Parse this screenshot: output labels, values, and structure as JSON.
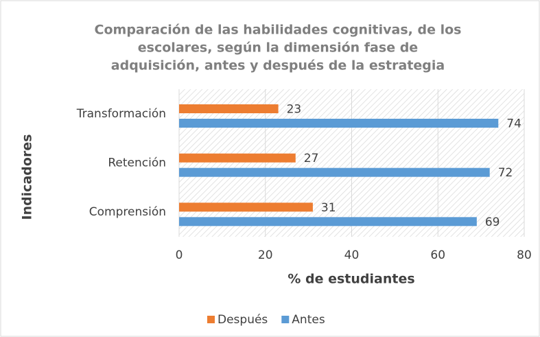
{
  "chart_data": {
    "type": "barh",
    "title": [
      "Comparación de las habilidades cognitivas, de los",
      "escolares, según la dimensión fase de",
      "adquisición, antes y después de la estrategia"
    ],
    "x_label": "% de estudiantes",
    "y_label": "Indicadores",
    "categories": [
      "Comprensión",
      "Retención",
      "Transformación"
    ],
    "series": [
      {
        "name": "Después",
        "color": "#ed7d31",
        "values": [
          31,
          27,
          23
        ]
      },
      {
        "name": "Antes",
        "color": "#5b9bd5",
        "values": [
          69,
          72,
          74
        ]
      }
    ],
    "xlim": [
      0,
      80
    ],
    "xticks": [
      0,
      20,
      40,
      60,
      80
    ],
    "grid": true,
    "legend": "bottom"
  }
}
